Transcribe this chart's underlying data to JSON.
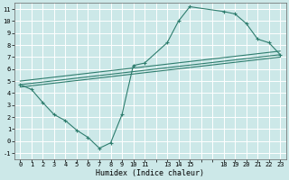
{
  "background_color": "#cce8e8",
  "grid_color": "#ffffff",
  "line_color": "#2e7d6e",
  "xlabel": "Humidex (Indice chaleur)",
  "xlim": [
    -0.5,
    23.5
  ],
  "ylim": [
    -1.5,
    11.5
  ],
  "xticks": [
    0,
    1,
    2,
    3,
    4,
    5,
    6,
    7,
    8,
    9,
    10,
    11,
    13,
    14,
    15,
    18,
    19,
    20,
    21,
    22,
    23
  ],
  "yticks": [
    -1,
    0,
    1,
    2,
    3,
    4,
    5,
    6,
    7,
    8,
    9,
    10,
    11
  ],
  "line1_x": [
    0,
    1,
    2,
    3,
    4,
    5,
    6,
    7,
    8,
    9,
    10,
    11,
    13,
    14,
    15,
    18,
    19,
    20,
    21,
    22,
    23
  ],
  "line1_y": [
    4.7,
    4.3,
    3.2,
    2.2,
    1.7,
    0.9,
    0.3,
    -0.6,
    -0.15,
    2.2,
    6.3,
    6.5,
    8.2,
    10.0,
    11.2,
    10.8,
    10.6,
    9.8,
    8.5,
    8.2,
    7.2
  ],
  "line2_x": [
    0,
    23
  ],
  "line2_y": [
    4.7,
    7.2
  ],
  "line3_x": [
    0,
    23
  ],
  "line3_y": [
    5.0,
    7.5
  ],
  "line4_x": [
    0,
    23
  ],
  "line4_y": [
    4.5,
    7.0
  ],
  "marker": "+",
  "markersize": 3.5,
  "linewidth": 0.8,
  "tick_fontsize": 5.0,
  "xlabel_fontsize": 6.0
}
